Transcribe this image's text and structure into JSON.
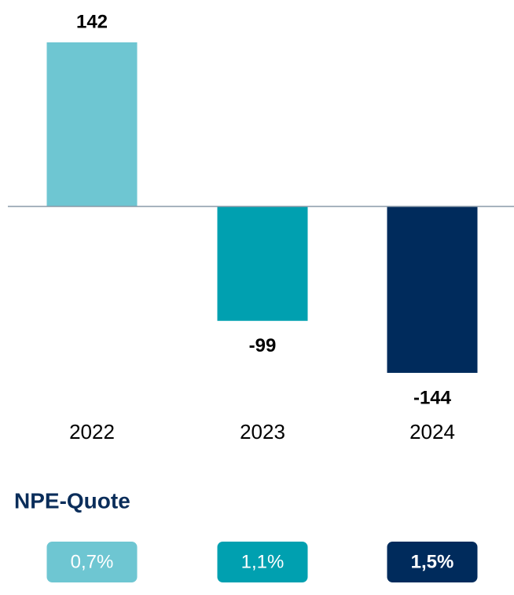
{
  "chart_data": {
    "type": "bar",
    "categories": [
      "2022",
      "2023",
      "2024"
    ],
    "values": [
      142,
      -99,
      -144
    ],
    "colors": [
      "#6ec6d2",
      "#00a0b0",
      "#002b5c"
    ]
  },
  "npe_quote": {
    "title": "NPE-Quote",
    "items": [
      "0,7%",
      "1,1%",
      "1,5%"
    ]
  }
}
